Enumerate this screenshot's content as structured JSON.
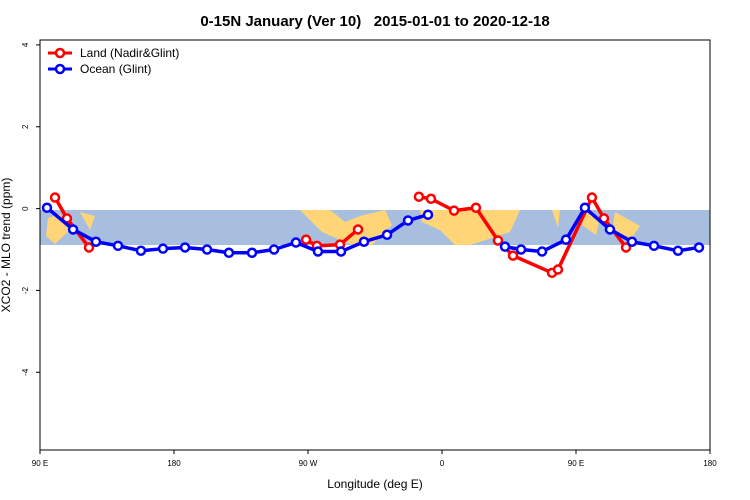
{
  "chart_data": {
    "type": "line",
    "title": "0-15N January (Ver 10)   2015-01-01 to 2020-12-18",
    "xlabel": "Longitude (deg E)",
    "ylabel": "XCO2 - MLO trend (ppm)",
    "xlim": [
      90,
      540
    ],
    "xticks": [
      {
        "value": 90,
        "label": "90 E"
      },
      180,
      {
        "value": 270,
        "label": "90 W"
      },
      {
        "value": 360,
        "label": "0"
      },
      {
        "value": 450,
        "label": "90 E"
      },
      {
        "value": 540,
        "label": "180"
      }
    ],
    "ylim": [
      -5.9,
      4.12
    ],
    "yticks": [
      -4,
      -2,
      0,
      2,
      4
    ],
    "legend": "top-left",
    "series": [
      {
        "name": "Land (Nadir&Glint)",
        "color": "#ff0000",
        "x": [
          100.1,
          108.1,
          122.9,
          null,
          268.7,
          276.0,
          291.5,
          303.6,
          null,
          344.5,
          352.6,
          368.1,
          382.8,
          397.6,
          407.7,
          433.9,
          437.9,
          460.7,
          468.8,
          483.6
        ],
        "values": [
          0.27,
          -0.24,
          -0.95,
          null,
          -0.76,
          -0.91,
          -0.88,
          -0.51,
          null,
          0.29,
          0.24,
          -0.05,
          0.02,
          -0.78,
          -1.15,
          -1.57,
          -1.49,
          0.27,
          -0.24,
          -0.95
        ]
      },
      {
        "name": "Ocean (Glint)",
        "color": "#0000ff",
        "x": [
          94.7,
          112.2,
          127.6,
          142.4,
          157.8,
          172.6,
          187.4,
          202.2,
          216.9,
          232.4,
          247.2,
          261.9,
          276.7,
          292.2,
          307.6,
          323.1,
          337.2,
          350.6,
          null,
          402.3,
          413.1,
          427.2,
          443.3,
          456.0,
          472.8,
          487.6,
          502.4,
          518.5,
          532.6
        ],
        "values": [
          0.02,
          -0.51,
          -0.81,
          -0.91,
          -1.03,
          -0.98,
          -0.95,
          -1.0,
          -1.08,
          -1.08,
          -1.0,
          -0.83,
          -1.05,
          -1.05,
          -0.81,
          -0.64,
          -0.29,
          -0.15,
          null,
          -0.93,
          -1.0,
          -1.05,
          -0.76,
          0.02,
          -0.51,
          -0.81,
          -0.91,
          -1.03,
          -0.95
        ]
      }
    ]
  }
}
